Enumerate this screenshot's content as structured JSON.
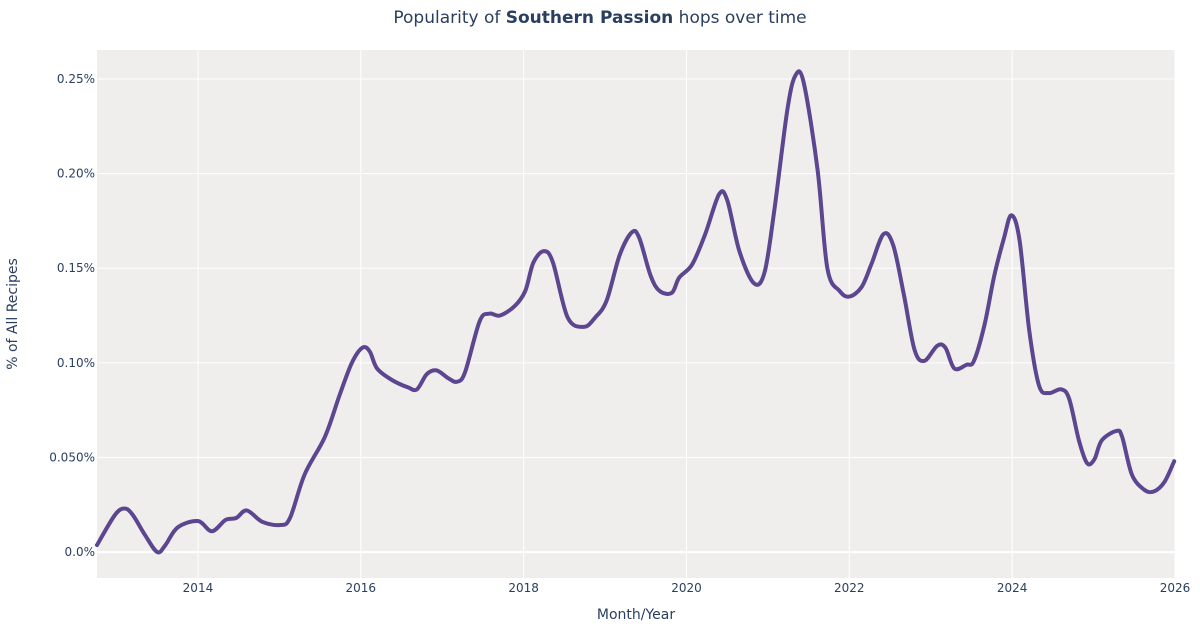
{
  "chart_data": {
    "type": "line",
    "title_prefix": "Popularity of ",
    "title_bold": "Southern Passion",
    "title_suffix": " hops over time",
    "xlabel": "Month/Year",
    "ylabel": "% of All Recipes",
    "xlim": [
      2012.76,
      2026.0
    ],
    "ylim": [
      -0.0137,
      0.2653
    ],
    "x_ticks": [
      2014,
      2016,
      2018,
      2020,
      2022,
      2024,
      2026
    ],
    "x_tick_labels": [
      "2014",
      "2016",
      "2018",
      "2020",
      "2022",
      "2024",
      "2026"
    ],
    "y_ticks": [
      0,
      0.05,
      0.1,
      0.15,
      0.2,
      0.25
    ],
    "y_tick_labels": [
      "0.0%",
      "0.050%",
      "0.10%",
      "0.15%",
      "0.20%",
      "0.25%"
    ],
    "grid": true,
    "background": "#efeeed",
    "line_color": "#5c4690",
    "series": [
      {
        "x": [
          2012.76,
          2012.98,
          2013.1,
          2013.2,
          2013.35,
          2013.5,
          2013.6,
          2013.75,
          2014.0,
          2014.17,
          2014.34,
          2014.47,
          2014.6,
          2014.79,
          2015.01,
          2015.13,
          2015.31,
          2015.56,
          2015.74,
          2015.89,
          2016.02,
          2016.11,
          2016.2,
          2016.38,
          2016.58,
          2016.69,
          2016.81,
          2016.93,
          2017.07,
          2017.18,
          2017.28,
          2017.46,
          2017.58,
          2017.71,
          2017.89,
          2018.02,
          2018.12,
          2018.25,
          2018.36,
          2018.54,
          2018.74,
          2018.88,
          2019.02,
          2019.18,
          2019.33,
          2019.42,
          2019.56,
          2019.67,
          2019.82,
          2019.91,
          2020.07,
          2020.23,
          2020.4,
          2020.5,
          2020.65,
          2020.83,
          2020.96,
          2021.08,
          2021.24,
          2021.34,
          2021.44,
          2021.61,
          2021.73,
          2021.88,
          2022.0,
          2022.15,
          2022.27,
          2022.42,
          2022.54,
          2022.67,
          2022.8,
          2022.92,
          2023.08,
          2023.18,
          2023.29,
          2023.44,
          2023.53,
          2023.66,
          2023.78,
          2023.9,
          2023.99,
          2024.09,
          2024.21,
          2024.33,
          2024.45,
          2024.6,
          2024.7,
          2024.82,
          2024.92,
          2025.01,
          2025.1,
          2025.28,
          2025.35,
          2025.47,
          2025.62,
          2025.74,
          2025.87,
          2025.99
        ],
        "y": [
          0.0037,
          0.0196,
          0.023,
          0.0196,
          0.009,
          0.0,
          0.0037,
          0.013,
          0.0164,
          0.011,
          0.017,
          0.018,
          0.022,
          0.016,
          0.0143,
          0.018,
          0.041,
          0.061,
          0.083,
          0.1,
          0.108,
          0.106,
          0.097,
          0.091,
          0.087,
          0.086,
          0.094,
          0.096,
          0.092,
          0.09,
          0.095,
          0.122,
          0.126,
          0.125,
          0.13,
          0.138,
          0.153,
          0.159,
          0.153,
          0.124,
          0.119,
          0.124,
          0.133,
          0.157,
          0.169,
          0.166,
          0.146,
          0.138,
          0.137,
          0.145,
          0.152,
          0.168,
          0.189,
          0.186,
          0.159,
          0.142,
          0.148,
          0.181,
          0.234,
          0.252,
          0.248,
          0.202,
          0.15,
          0.138,
          0.135,
          0.14,
          0.152,
          0.168,
          0.162,
          0.136,
          0.107,
          0.101,
          0.109,
          0.108,
          0.097,
          0.099,
          0.101,
          0.12,
          0.146,
          0.166,
          0.178,
          0.165,
          0.117,
          0.088,
          0.084,
          0.086,
          0.081,
          0.059,
          0.047,
          0.049,
          0.059,
          0.064,
          0.061,
          0.041,
          0.033,
          0.032,
          0.037,
          0.048
        ]
      }
    ]
  }
}
